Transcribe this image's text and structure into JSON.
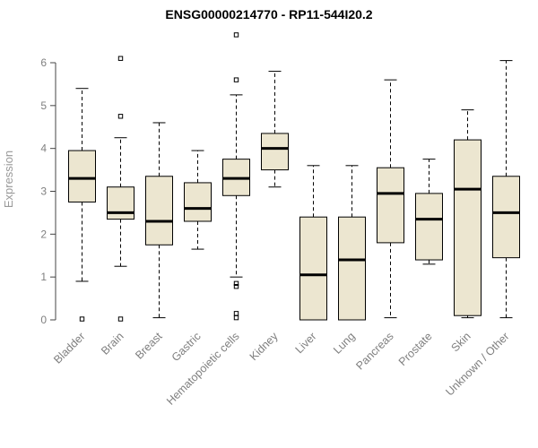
{
  "chart_data": {
    "type": "boxplot",
    "title": "ENSG00000214770 - RP11-544I20.2",
    "ylabel": "Expression",
    "xlabel": "",
    "ylim": [
      0,
      6.8
    ],
    "yticks": [
      0,
      1,
      2,
      3,
      4,
      5,
      6
    ],
    "grid": false,
    "legend": "none",
    "categories": [
      "Bladder",
      "Brain",
      "Breast",
      "Gastric",
      "Hematopoietic cells",
      "Kidney",
      "Liver",
      "Lung",
      "Pancreas",
      "Prostate",
      "Skin",
      "Unknown / Other"
    ],
    "boxes": [
      {
        "category": "Bladder",
        "whisker_low": 0.9,
        "q1": 2.75,
        "median": 3.3,
        "q3": 3.95,
        "whisker_high": 5.4,
        "outliers": [
          0.02
        ]
      },
      {
        "category": "Brain",
        "whisker_low": 1.25,
        "q1": 2.35,
        "median": 2.5,
        "q3": 3.1,
        "whisker_high": 4.25,
        "outliers": [
          6.1,
          4.75,
          0.02
        ]
      },
      {
        "category": "Breast",
        "whisker_low": 0.05,
        "q1": 1.75,
        "median": 2.3,
        "q3": 3.35,
        "whisker_high": 4.6,
        "outliers": []
      },
      {
        "category": "Gastric",
        "whisker_low": 1.65,
        "q1": 2.3,
        "median": 2.6,
        "q3": 3.2,
        "whisker_high": 3.95,
        "outliers": []
      },
      {
        "category": "Hematopoietic cells",
        "whisker_low": 1.0,
        "q1": 2.9,
        "median": 3.3,
        "q3": 3.75,
        "whisker_high": 5.25,
        "outliers": [
          6.65,
          5.6,
          0.85,
          0.78,
          0.15,
          0.05
        ]
      },
      {
        "category": "Kidney",
        "whisker_low": 3.1,
        "q1": 3.5,
        "median": 4.0,
        "q3": 4.35,
        "whisker_high": 5.8,
        "outliers": []
      },
      {
        "category": "Liver",
        "whisker_low": 0.0,
        "q1": 0.0,
        "median": 1.05,
        "q3": 2.4,
        "whisker_high": 3.6,
        "outliers": []
      },
      {
        "category": "Lung",
        "whisker_low": 0.0,
        "q1": 0.0,
        "median": 1.4,
        "q3": 2.4,
        "whisker_high": 3.6,
        "outliers": []
      },
      {
        "category": "Pancreas",
        "whisker_low": 0.05,
        "q1": 1.8,
        "median": 2.95,
        "q3": 3.55,
        "whisker_high": 5.6,
        "outliers": []
      },
      {
        "category": "Prostate",
        "whisker_low": 1.3,
        "q1": 1.4,
        "median": 2.35,
        "q3": 2.95,
        "whisker_high": 3.75,
        "outliers": []
      },
      {
        "category": "Skin",
        "whisker_low": 0.05,
        "q1": 0.1,
        "median": 3.05,
        "q3": 4.2,
        "whisker_high": 4.9,
        "outliers": []
      },
      {
        "category": "Unknown / Other",
        "whisker_low": 0.05,
        "q1": 1.45,
        "median": 2.5,
        "q3": 3.35,
        "whisker_high": 6.05,
        "outliers": []
      }
    ],
    "colors": {
      "box_fill": "#ECE6D0",
      "box_border": "#000000",
      "median_line": "#000000",
      "whisker": "#000000",
      "axis_line": "#444444",
      "tick_label": "#7f7f7f",
      "category_label": "#7f7f7f",
      "title": "#000000",
      "ylabel": "#999999",
      "background": "#ffffff"
    }
  }
}
